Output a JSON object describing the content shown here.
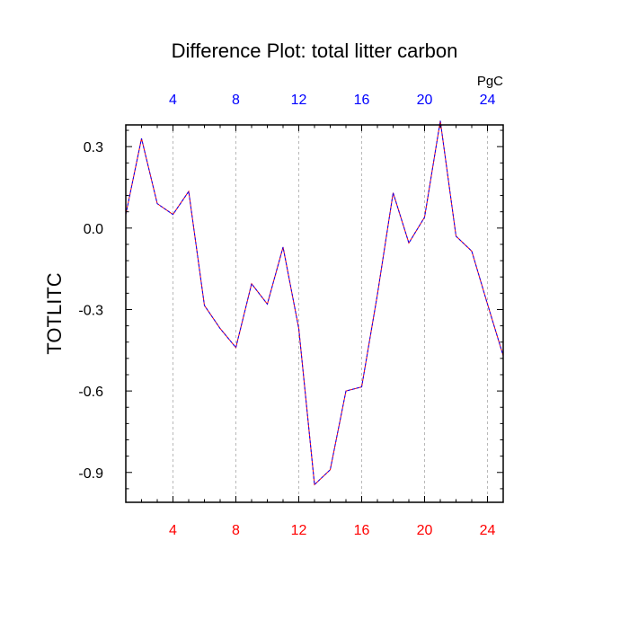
{
  "colors": {
    "top_axis": "#0000ff",
    "bottom_axis": "#ff0000",
    "line_solid": "#ff0000",
    "line_dash": "#0000ff",
    "grid": "#a8a8a8",
    "frame": "#000000"
  },
  "chart_data": {
    "type": "line",
    "title": "Difference Plot: total litter carbon",
    "units": "PgC",
    "ylabel": "TOTLITC",
    "xlabel": "",
    "xlim": [
      1,
      25
    ],
    "ylim": [
      -1.01,
      0.38
    ],
    "grid": "vertical dashed at major x ticks",
    "x_ticks": [
      4,
      8,
      12,
      16,
      20,
      24
    ],
    "y_ticks": [
      0.3,
      0.0,
      -0.3,
      -0.6,
      -0.9
    ],
    "x_tick_labels": [
      "4",
      "8",
      "12",
      "16",
      "20",
      "24"
    ],
    "y_tick_labels": [
      "0.3",
      "0.0",
      "-0.3",
      "-0.6",
      "-0.9"
    ],
    "top_axis_tick_labels": [
      "4",
      "8",
      "12",
      "16",
      "20",
      "24"
    ],
    "x": [
      1,
      2,
      3,
      4,
      5,
      6,
      7,
      8,
      9,
      10,
      11,
      12,
      13,
      14,
      15,
      16,
      17,
      18,
      19,
      20,
      21,
      22,
      23,
      24,
      25
    ],
    "series": [
      {
        "style": "dashed",
        "values": [
          0.05,
          0.33,
          0.09,
          0.05,
          0.135,
          -0.285,
          -0.37,
          -0.44,
          -0.205,
          -0.28,
          -0.07,
          -0.37,
          -0.945,
          -0.89,
          -0.6,
          -0.585,
          -0.245,
          0.13,
          -0.055,
          0.04,
          0.395,
          -0.03,
          -0.085,
          -0.28,
          -0.47
        ]
      }
    ]
  }
}
